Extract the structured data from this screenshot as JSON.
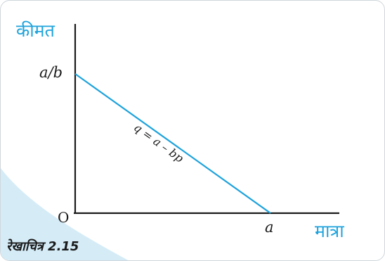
{
  "diagram": {
    "y_axis_title": "कीमत",
    "x_axis_title": "मात्रा",
    "y_intercept_label": "a/b",
    "x_intercept_label": "a",
    "origin_label": "O",
    "line_label": "q = a – bp",
    "caption": "रेखाचित्र 2.15"
  },
  "colors": {
    "line": "#1ea3dc",
    "axis": "#1a1a1a",
    "axis_title": "#1ea3dc",
    "corner_wave": "#d5ecf7"
  }
}
